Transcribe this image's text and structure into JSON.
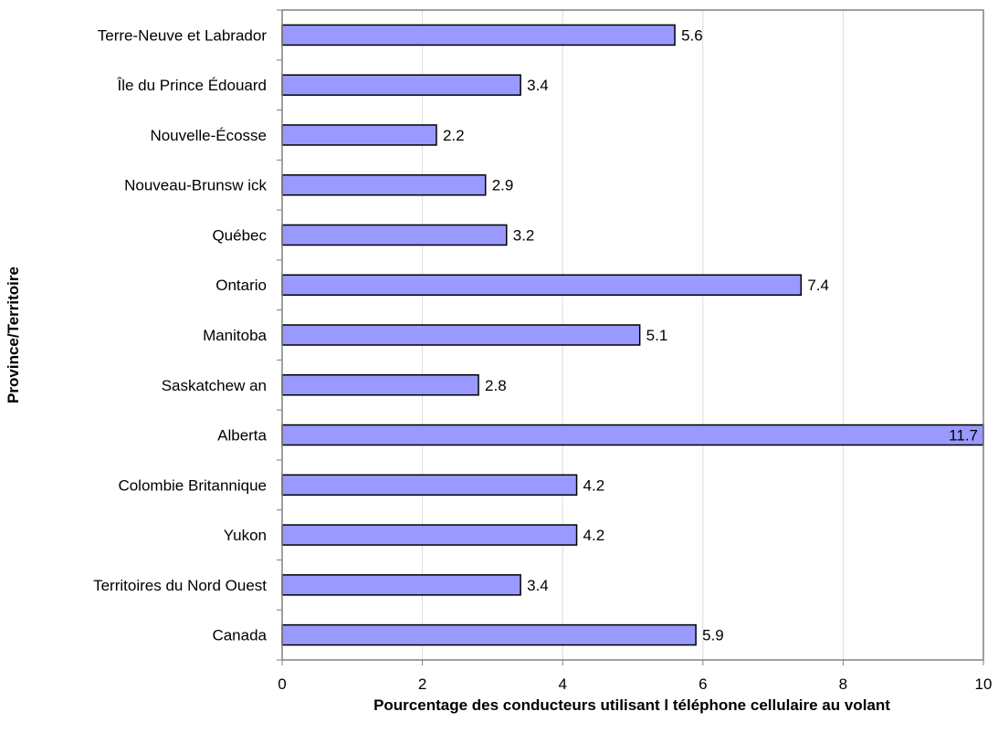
{
  "chart_data": {
    "type": "bar",
    "orientation": "horizontal",
    "categories": [
      "Terre-Neuve et Labrador",
      "Île du Prince Édouard",
      "Nouvelle-Écosse",
      "Nouveau-Brunsw ick",
      "Québec",
      "Ontario",
      "Manitoba",
      "Saskatchew an",
      "Alberta",
      "Colombie Britannique",
      "Yukon",
      "Territoires du Nord Ouest",
      "Canada"
    ],
    "values": [
      5.6,
      3.4,
      2.2,
      2.9,
      3.2,
      7.4,
      5.1,
      2.8,
      11.7,
      4.2,
      4.2,
      3.4,
      5.9
    ],
    "value_labels": [
      "5.6",
      "3.4",
      "2.2",
      "2.9",
      "3.2",
      "7.4",
      "5.1",
      "2.8",
      "11.7",
      "4.2",
      "4.2",
      "3.4",
      "5.9"
    ],
    "xlabel": "Pourcentage des conducteurs utilisant l téléphone cellulaire au volant",
    "ylabel": "Province/Territoire",
    "xlim": [
      0,
      10
    ],
    "xticks": [
      "0",
      "2",
      "4",
      "6",
      "8",
      "10"
    ],
    "grid": true,
    "bar_color": "#9999FF",
    "bar_edge_color": "#000000",
    "grid_color": "#DCDCDC",
    "axis_color": "#808080"
  }
}
